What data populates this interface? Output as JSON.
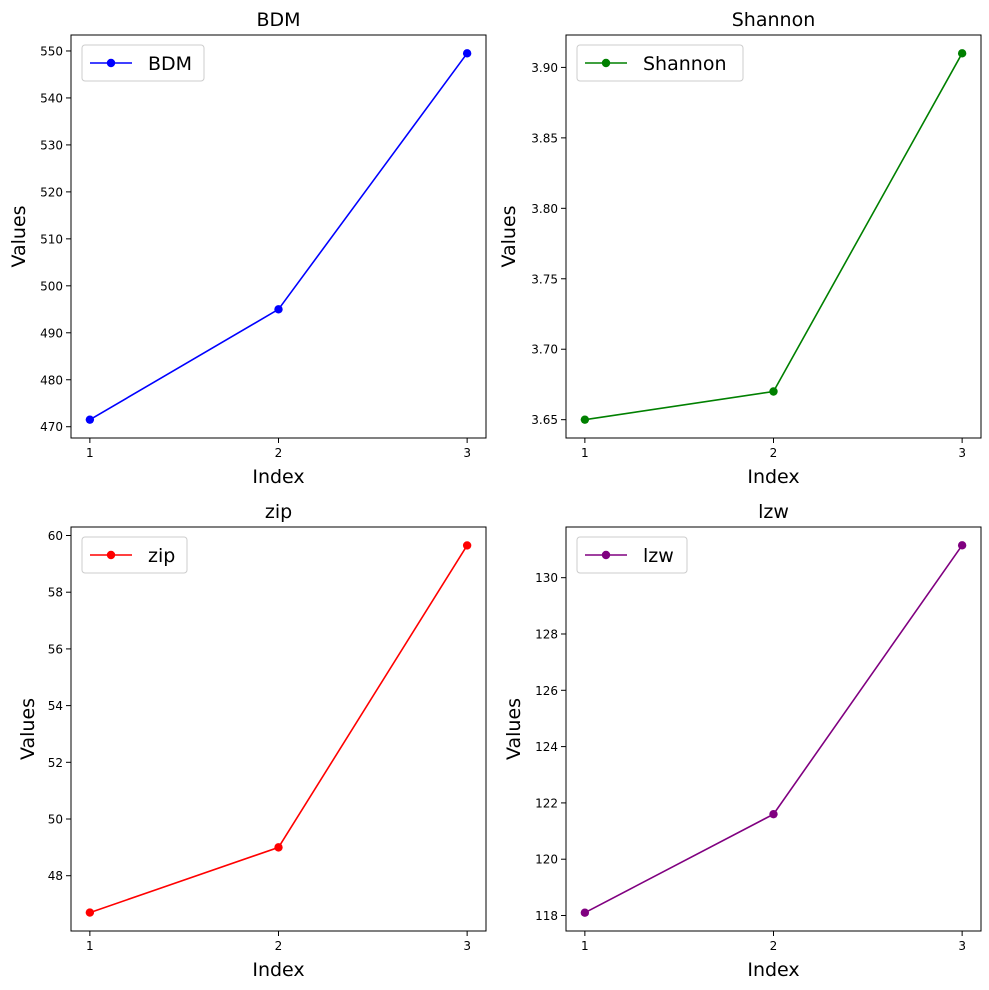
{
  "chart_data": [
    {
      "type": "line",
      "title": "BDM",
      "xlabel": "Index",
      "ylabel": "Values",
      "x": [
        1,
        2,
        3
      ],
      "series": [
        {
          "name": "BDM",
          "values": [
            471.5,
            495.0,
            549.5
          ],
          "color": "#0000ff"
        }
      ],
      "xticks": [
        1,
        2,
        3
      ],
      "xtick_labels": [
        "1",
        "2",
        "3"
      ],
      "yticks": [
        470,
        480,
        490,
        500,
        510,
        520,
        530,
        540,
        550
      ],
      "ytick_labels": [
        "470",
        "480",
        "490",
        "500",
        "510",
        "520",
        "530",
        "540",
        "550"
      ],
      "xlim": [
        0.9,
        3.1
      ],
      "ylim": [
        467.6,
        553.4
      ],
      "legend": "upper-left",
      "grid": false
    },
    {
      "type": "line",
      "title": "Shannon",
      "xlabel": "Index",
      "ylabel": "Values",
      "x": [
        1,
        2,
        3
      ],
      "series": [
        {
          "name": "Shannon",
          "values": [
            3.65,
            3.67,
            3.91
          ],
          "color": "#008000"
        }
      ],
      "xticks": [
        1,
        2,
        3
      ],
      "xtick_labels": [
        "1",
        "2",
        "3"
      ],
      "yticks": [
        3.65,
        3.7,
        3.75,
        3.8,
        3.85,
        3.9
      ],
      "ytick_labels": [
        "3.65",
        "3.70",
        "3.75",
        "3.80",
        "3.85",
        "3.90"
      ],
      "xlim": [
        0.9,
        3.1
      ],
      "ylim": [
        3.637,
        3.923
      ],
      "legend": "upper-left",
      "grid": false
    },
    {
      "type": "line",
      "title": "zip",
      "xlabel": "Index",
      "ylabel": "Values",
      "x": [
        1,
        2,
        3
      ],
      "series": [
        {
          "name": "zip",
          "values": [
            46.7,
            49.0,
            59.65
          ],
          "color": "#ff0000"
        }
      ],
      "xticks": [
        1,
        2,
        3
      ],
      "xtick_labels": [
        "1",
        "2",
        "3"
      ],
      "yticks": [
        48,
        50,
        52,
        54,
        56,
        58,
        60
      ],
      "ytick_labels": [
        "48",
        "50",
        "52",
        "54",
        "56",
        "58",
        "60"
      ],
      "xlim": [
        0.9,
        3.1
      ],
      "ylim": [
        46.05,
        60.3
      ],
      "legend": "upper-left",
      "grid": false
    },
    {
      "type": "line",
      "title": "lzw",
      "xlabel": "Index",
      "ylabel": "Values",
      "x": [
        1,
        2,
        3
      ],
      "series": [
        {
          "name": "lzw",
          "values": [
            118.1,
            121.6,
            131.15
          ],
          "color": "#800080"
        }
      ],
      "xticks": [
        1,
        2,
        3
      ],
      "xtick_labels": [
        "1",
        "2",
        "3"
      ],
      "yticks": [
        118,
        120,
        122,
        124,
        126,
        128,
        130
      ],
      "ytick_labels": [
        "118",
        "120",
        "122",
        "124",
        "126",
        "128",
        "130"
      ],
      "xlim": [
        0.9,
        3.1
      ],
      "ylim": [
        117.45,
        131.8
      ],
      "legend": "upper-left",
      "grid": false
    }
  ]
}
